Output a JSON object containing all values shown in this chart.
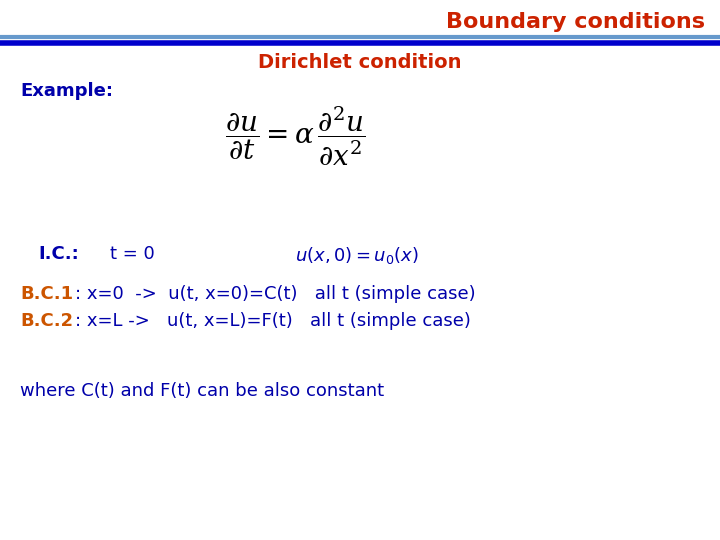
{
  "title": "Boundary conditions",
  "title_color": "#CC2200",
  "subtitle": "Dirichlet condition",
  "subtitle_color": "#CC2200",
  "header_line_color_thick": "#0000CC",
  "header_line_color_thin": "#6699CC",
  "bg_color": "#FFFFFF",
  "example_label": "Example:",
  "example_color": "#0000AA",
  "ic_label": "I.C.:",
  "ic_condition": "  t = 0",
  "ic_color": "#0000AA",
  "bc1_label": "B.C.1",
  "bc1_rest": ": x=0  ->  u(t, x=0)=C(t)   all t (simple case)",
  "bc2_label": "B.C.2",
  "bc2_rest": ": x=L ->   u(t, x=L)=F(t)   all t (simple case)",
  "bc_label_color": "#CC5500",
  "bc_rest_color": "#0000AA",
  "where_text": "where C(t) and F(t) can be also constant",
  "where_color": "#0000AA",
  "eq_color": "#000000"
}
